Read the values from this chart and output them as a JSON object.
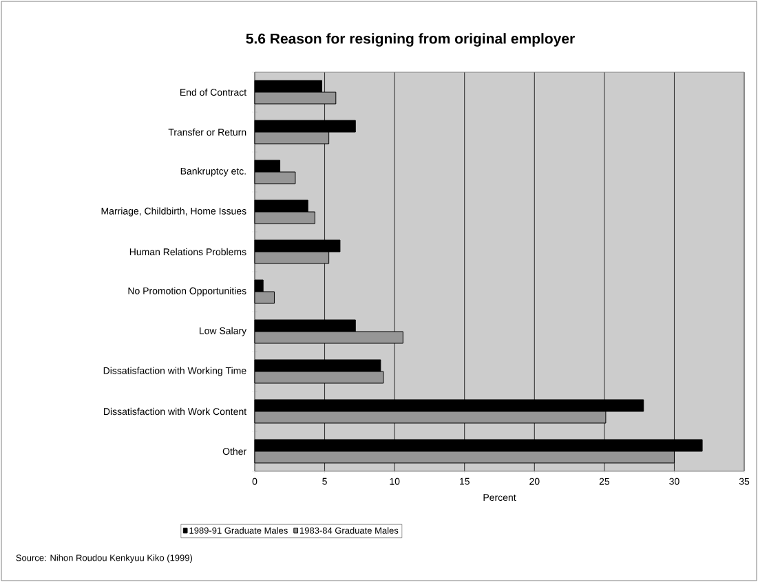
{
  "chart_data": {
    "type": "bar",
    "orientation": "horizontal",
    "title": "5.6 Reason for resigning from original employer",
    "categories": [
      "End of Contract",
      "Transfer or Return",
      "Bankruptcy etc.",
      "Marriage, Childbirth, Home Issues",
      "Human Relations Problems",
      "No Promotion Opportunities",
      "Low Salary",
      "Dissatisfaction with Working Time",
      "Dissatisfaction with Work Content",
      "Other"
    ],
    "series": [
      {
        "name": "1989-91 Graduate Males",
        "color": "#000000",
        "values": [
          4.8,
          7.2,
          1.8,
          3.8,
          6.1,
          0.6,
          7.2,
          9.0,
          27.8,
          32.0
        ]
      },
      {
        "name": "1983-84 Graduate Males",
        "color": "#969696",
        "values": [
          5.8,
          5.3,
          2.9,
          4.3,
          5.3,
          1.4,
          10.6,
          9.2,
          25.1,
          30.0
        ]
      }
    ],
    "xlabel": "Percent",
    "xlim": [
      0,
      35
    ],
    "xticks": [
      0,
      5,
      10,
      15,
      20,
      25,
      30,
      35
    ],
    "grid": "x",
    "legend": "bottom",
    "annotations": [
      "Source: Nihon Roudou Kenkyuu Kiko (1999)"
    ]
  }
}
